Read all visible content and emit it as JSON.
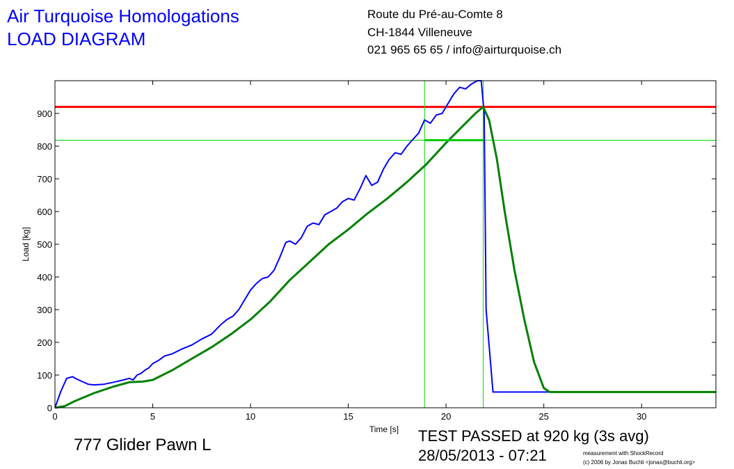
{
  "header": {
    "title_line1": "Air Turquoise Homologations",
    "title_line2": "LOAD DIAGRAM",
    "address_line1": "Route du Pré-au-Comte 8",
    "address_line2": "CH-1844 Villeneuve",
    "address_line3": "021 965 65 65 / info@airturquoise.ch"
  },
  "footer": {
    "glider_name": "777 Glider Pawn L",
    "result_line1": "TEST PASSED at 920 kg (3s avg)",
    "result_line2": "28/05/2013 - 07:21",
    "credit_line1": "measurement with ShockRecord",
    "credit_line2": "(c) 2006 by Jonas Buchli <jonas@buchli.org>"
  },
  "chart_data": {
    "type": "line",
    "xlabel": "Time [s]",
    "ylabel": "Load [kg]",
    "xlim": [
      0,
      33.8
    ],
    "ylim": [
      0,
      1000
    ],
    "xticks": [
      0,
      5,
      10,
      15,
      20,
      25,
      30
    ],
    "yticks": [
      0,
      100,
      200,
      300,
      400,
      500,
      600,
      700,
      800,
      900
    ],
    "grid": false,
    "series": [
      {
        "color": "#0000ff",
        "x": [
          0,
          0.3,
          0.6,
          0.9,
          1.1,
          1.4,
          1.7,
          2.0,
          2.5,
          3.0,
          3.5,
          3.8,
          4.0,
          4.2,
          4.4,
          4.6,
          4.8,
          5.0,
          5.3,
          5.6,
          6.0,
          6.5,
          7.0,
          7.5,
          8.0,
          8.5,
          8.8,
          9.1,
          9.4,
          9.7,
          10.0,
          10.3,
          10.6,
          10.9,
          11.2,
          11.5,
          11.8,
          12.0,
          12.3,
          12.6,
          12.9,
          13.2,
          13.5,
          13.8,
          14.1,
          14.4,
          14.7,
          15.0,
          15.3,
          15.6,
          15.9,
          16.2,
          16.5,
          16.8,
          17.1,
          17.4,
          17.7,
          18.0,
          18.3,
          18.6,
          18.9,
          19.2,
          19.5,
          19.8,
          20.1,
          20.4,
          20.7,
          21.0,
          21.3,
          21.6,
          21.8,
          21.95,
          22.0,
          22.05,
          22.4,
          22.8,
          24.0,
          25.0,
          27.0,
          30.0,
          33.8
        ],
        "y": [
          0,
          50,
          90,
          95,
          88,
          80,
          72,
          70,
          72,
          78,
          85,
          90,
          85,
          100,
          105,
          115,
          122,
          135,
          145,
          158,
          165,
          180,
          192,
          210,
          225,
          255,
          270,
          280,
          300,
          330,
          360,
          380,
          395,
          400,
          420,
          460,
          505,
          510,
          500,
          520,
          555,
          565,
          560,
          590,
          600,
          610,
          630,
          640,
          635,
          670,
          710,
          680,
          690,
          730,
          760,
          780,
          775,
          800,
          820,
          840,
          880,
          870,
          895,
          900,
          930,
          960,
          980,
          975,
          990,
          1000,
          1010,
          900,
          600,
          300,
          48,
          48,
          48,
          48,
          48,
          48,
          48
        ]
      },
      {
        "color": "#008000",
        "x": [
          0,
          0.5,
          1.0,
          2.0,
          3.0,
          3.8,
          4.5,
          5.0,
          5.5,
          6.0,
          7.0,
          8.0,
          9.0,
          10.0,
          11.0,
          12.0,
          13.0,
          14.0,
          15.0,
          16.0,
          17.0,
          18.0,
          19.0,
          20.0,
          21.0,
          21.5,
          21.9,
          22.2,
          22.6,
          23.0,
          23.5,
          24.0,
          24.5,
          25.0,
          25.3,
          25.6,
          27.0,
          30.0,
          33.8
        ],
        "y": [
          0,
          5,
          20,
          45,
          65,
          78,
          80,
          85,
          100,
          115,
          150,
          185,
          225,
          270,
          325,
          390,
          445,
          500,
          545,
          595,
          640,
          690,
          745,
          810,
          870,
          900,
          920,
          880,
          760,
          600,
          420,
          270,
          140,
          60,
          48,
          48,
          48,
          48,
          48
        ]
      }
    ],
    "reference_lines": [
      {
        "axis": "y",
        "value": 920,
        "color": "#ff0000"
      },
      {
        "axis": "y",
        "value": 818,
        "color": "#00dd00"
      },
      {
        "axis": "x",
        "value": 18.9,
        "color": "#00dd00"
      },
      {
        "axis": "x",
        "value": 21.9,
        "color": "#00dd00"
      }
    ],
    "average_segment": {
      "x": [
        18.9,
        21.9
      ],
      "y": 818,
      "color": "#00cc00"
    }
  }
}
